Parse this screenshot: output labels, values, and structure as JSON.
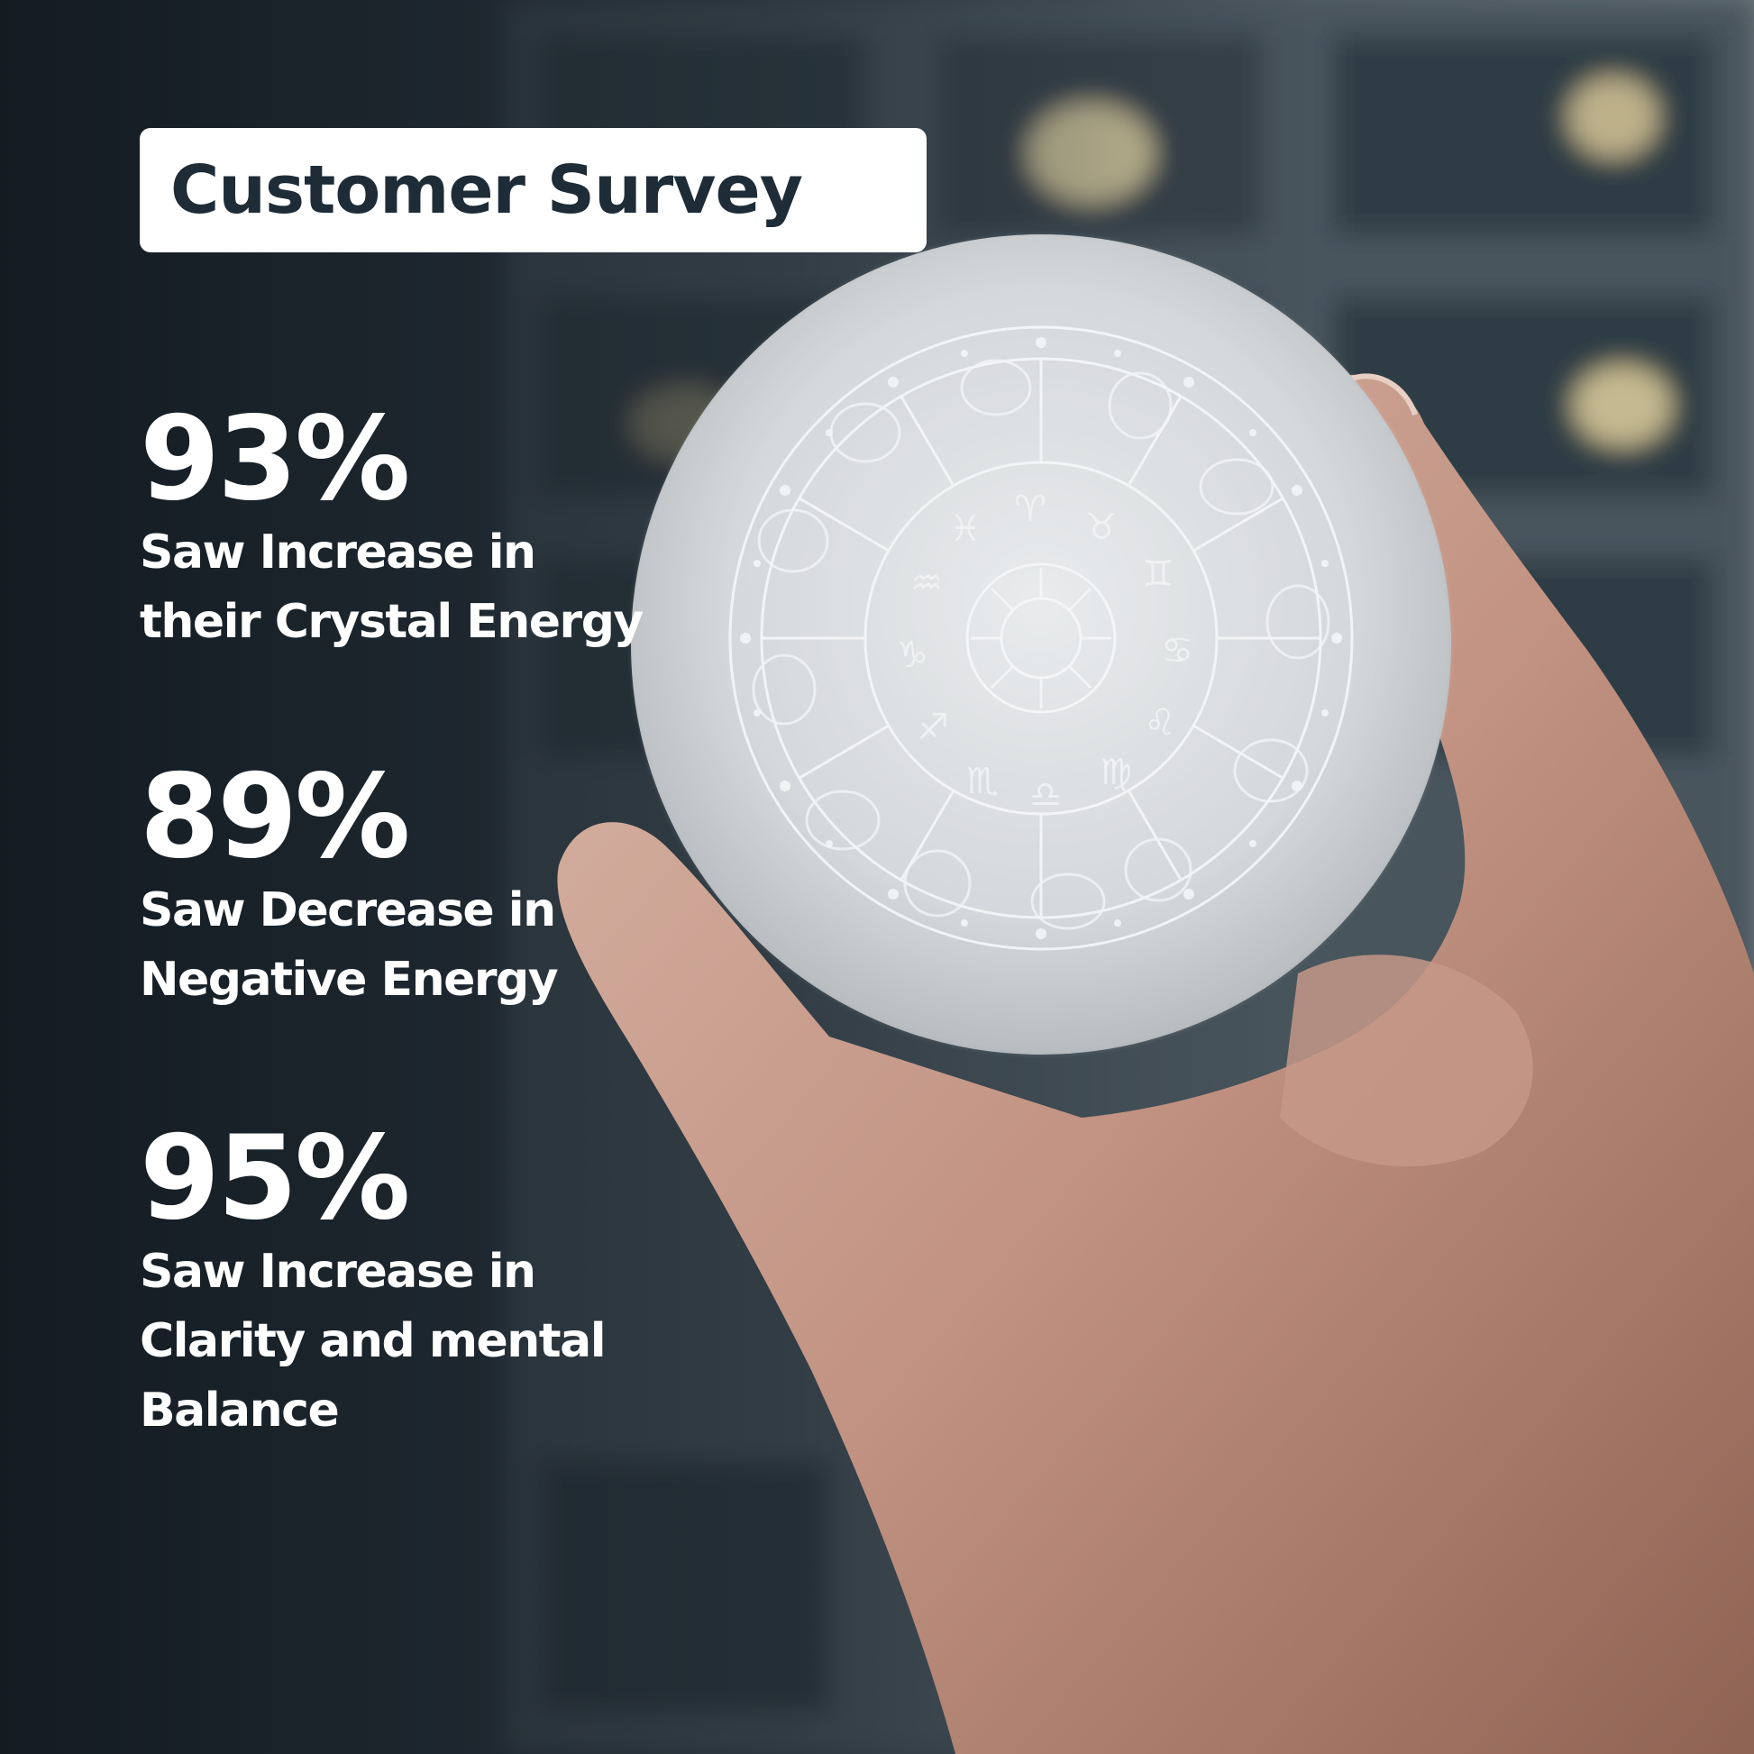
{
  "title": "Customer Survey",
  "stats": [
    {
      "value": "93%",
      "caption_lines": [
        "Saw Increase in",
        "their Crystal Energy"
      ]
    },
    {
      "value": "89%",
      "caption_lines": [
        "Saw Decrease in",
        "Negative Energy"
      ]
    },
    {
      "value": "95%",
      "caption_lines": [
        "Saw Increase in",
        "Clarity and mental",
        "Balance"
      ]
    }
  ],
  "colors": {
    "title_text": "#1e2c37",
    "title_box": "#ffffff",
    "stat_text": "#ffffff",
    "background_dark": "#182028",
    "background_light": "#6a757b"
  },
  "photo": {
    "subject": "hand-holding-zodiac-engraved-selenite-disc"
  }
}
